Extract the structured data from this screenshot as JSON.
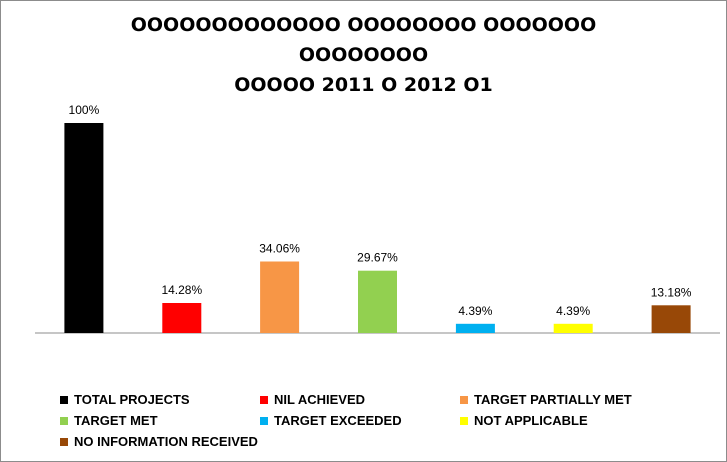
{
  "chart_data": {
    "type": "bar",
    "title_lines": [
      "OOOOOOOOOOOOO OOOOOOOO OOOOOOO",
      "OOOOOOOO",
      "OOOOO 2011 O 2012 O1"
    ],
    "categories": [
      "TOTAL PROJECTS",
      "NIL ACHIEVED",
      "TARGET PARTIALLY MET",
      "TARGET MET",
      "TARGET EXCEEDED",
      "NOT APPLICABLE",
      "NO INFORMATION RECEIVED"
    ],
    "values": [
      100,
      14.28,
      34.06,
      29.67,
      4.39,
      4.39,
      13.18
    ],
    "data_labels": [
      "100%",
      "14.28%",
      "34.06%",
      "29.67%",
      "4.39%",
      "4.39%",
      "13.18%"
    ],
    "colors": [
      "#000000",
      "#ff0000",
      "#f79646",
      "#92d050",
      "#00b0f0",
      "#ffff00",
      "#984807"
    ],
    "ylim": [
      0,
      100
    ],
    "grid": false,
    "legend_position": "bottom"
  }
}
